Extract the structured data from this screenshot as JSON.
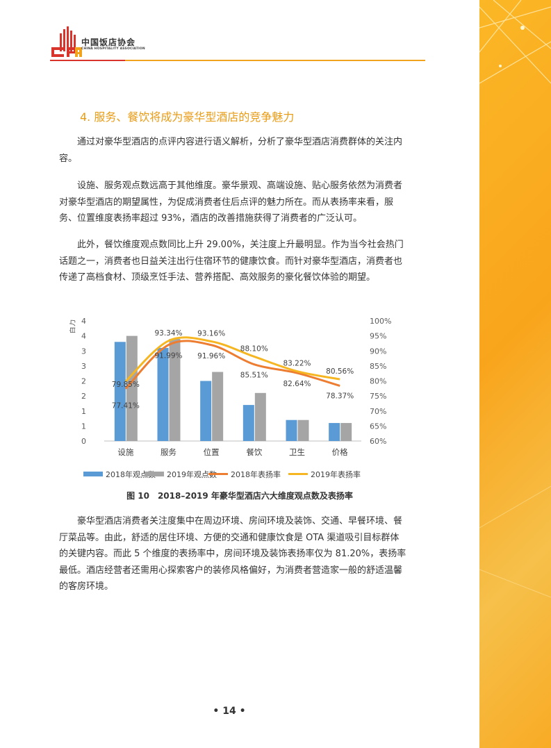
{
  "header": {
    "org_name_cn": "中国饭店协会",
    "org_name_en": "CHINA HOSPITALITY ASSOCIATION",
    "logo_colors": [
      "#d9342b",
      "#f2a31e"
    ]
  },
  "section": {
    "heading": "4. 服务、餐饮将成为豪华型酒店的竞争魅力"
  },
  "paragraphs": [
    "通过对豪华型酒店的点评内容进行语义解析，分析了豪华型酒店消费群体的关注内容。",
    "设施、服务观点数远高于其他维度。豪华景观、高端设施、贴心服务依然为消费者对豪华型酒店的期望属性，为促成消费者住后点评的魅力所在。而从表扬率来看，服务、位置维度表扬率超过 93%，酒店的改善措施获得了消费者的广泛认可。",
    "此外，餐饮维度观点数同比上升 29.00%，关注度上升最明显。作为当今社会热门话题之一，消费者也日益关注出行住宿环节的健康饮食。而针对豪华型酒店，消费者也传递了高档食材、顶级烹饪手法、营养搭配、高效服务的豪化餐饮体验的期望。",
    "豪华型酒店消费者关注度集中在周边环境、房间环境及装饰、交通、早餐环境、餐厅菜品等。由此，舒适的居住环境、方便的交通和健康饮食是 OTA 渠道吸引目标群体的关键内容。而此 5 个维度的表扬率中，房间环境及装饰表扬率仅为 81.20%，表扬率最低。酒店经营者还需用心探索客户的装修风格偏好，为消费者营造家一般的舒适温馨的客房环境。"
  ],
  "figure_caption": "图 10　2018–2019 年豪华型酒店六大维度观点数及表扬率",
  "page_number": "• 14 •",
  "chart_data": {
    "type": "bar",
    "categories": [
      "设施",
      "服务",
      "位置",
      "餐饮",
      "卫生",
      "价格"
    ],
    "series": [
      {
        "name": "2018年观点数",
        "kind": "bar",
        "axis": "left",
        "color": "#5b9bd5",
        "values": [
          3.3,
          3.1,
          2.0,
          1.2,
          0.7,
          0.6
        ]
      },
      {
        "name": "2019年观点数",
        "kind": "bar",
        "axis": "left",
        "color": "#a5a5a5",
        "values": [
          3.5,
          3.4,
          2.3,
          1.6,
          0.7,
          0.6
        ]
      },
      {
        "name": "2018年表扬率",
        "kind": "line",
        "axis": "right",
        "color": "#ed7d31",
        "values": [
          77.41,
          91.99,
          91.96,
          85.51,
          82.64,
          78.37
        ]
      },
      {
        "name": "2019年表扬率",
        "kind": "line",
        "axis": "right",
        "color": "#f5b622",
        "values": [
          79.85,
          93.34,
          93.16,
          88.1,
          83.22,
          80.56
        ]
      }
    ],
    "data_labels_2018": [
      "77.41%",
      "91.99%",
      "91.96%",
      "85.51%",
      "82.64%",
      "78.37%"
    ],
    "data_labels_2019": [
      "79.85%",
      "93.34%",
      "93.16%",
      "88.10%",
      "83.22%",
      "80.56%"
    ],
    "left_axis": {
      "label": "百万",
      "ticks": [
        "0",
        "1",
        "1",
        "2",
        "2",
        "3",
        "3",
        "4",
        "4"
      ],
      "ylim": [
        0,
        4
      ]
    },
    "right_axis": {
      "ticks": [
        "60%",
        "65%",
        "70%",
        "75%",
        "80%",
        "85%",
        "90%",
        "95%",
        "100%"
      ],
      "ylim": [
        60,
        100
      ]
    },
    "legend_position": "bottom",
    "grid": false
  }
}
